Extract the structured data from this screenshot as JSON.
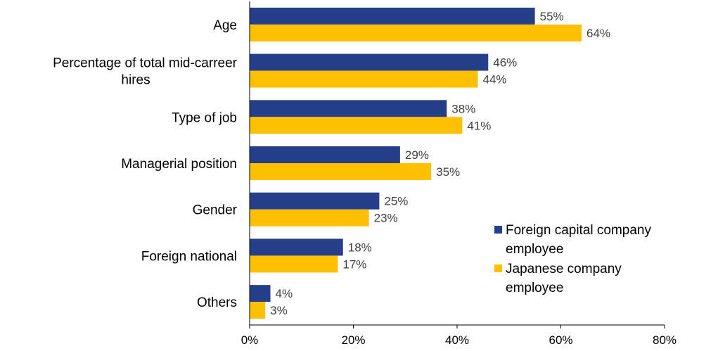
{
  "chart_data": {
    "type": "bar",
    "orientation": "horizontal",
    "categories": [
      [
        "Age"
      ],
      [
        "Percentage of total mid-carreer",
        "hires"
      ],
      [
        "Type of job"
      ],
      [
        "Managerial position"
      ],
      [
        "Gender"
      ],
      [
        "Foreign national"
      ],
      [
        "Others"
      ]
    ],
    "series": [
      {
        "name_lines": [
          "Foreign capital company",
          "employee"
        ],
        "color": "#253F8A",
        "values": [
          55,
          46,
          38,
          29,
          25,
          18,
          4
        ],
        "value_labels": [
          "55%",
          "46%",
          "38%",
          "29%",
          "25%",
          "18%",
          "4%"
        ]
      },
      {
        "name_lines": [
          "Japanese company",
          "employee"
        ],
        "color": "#FFC000",
        "values": [
          64,
          44,
          41,
          35,
          23,
          17,
          3
        ],
        "value_labels": [
          "64%",
          "44%",
          "41%",
          "35%",
          "23%",
          "17%",
          "3%"
        ]
      }
    ],
    "xlim": [
      0,
      80
    ],
    "xticks": [
      0,
      20,
      40,
      60,
      80
    ],
    "xtick_labels": [
      "0%",
      "20%",
      "40%",
      "60%",
      "80%"
    ],
    "grid": false,
    "legend_position": "bottom-right"
  }
}
